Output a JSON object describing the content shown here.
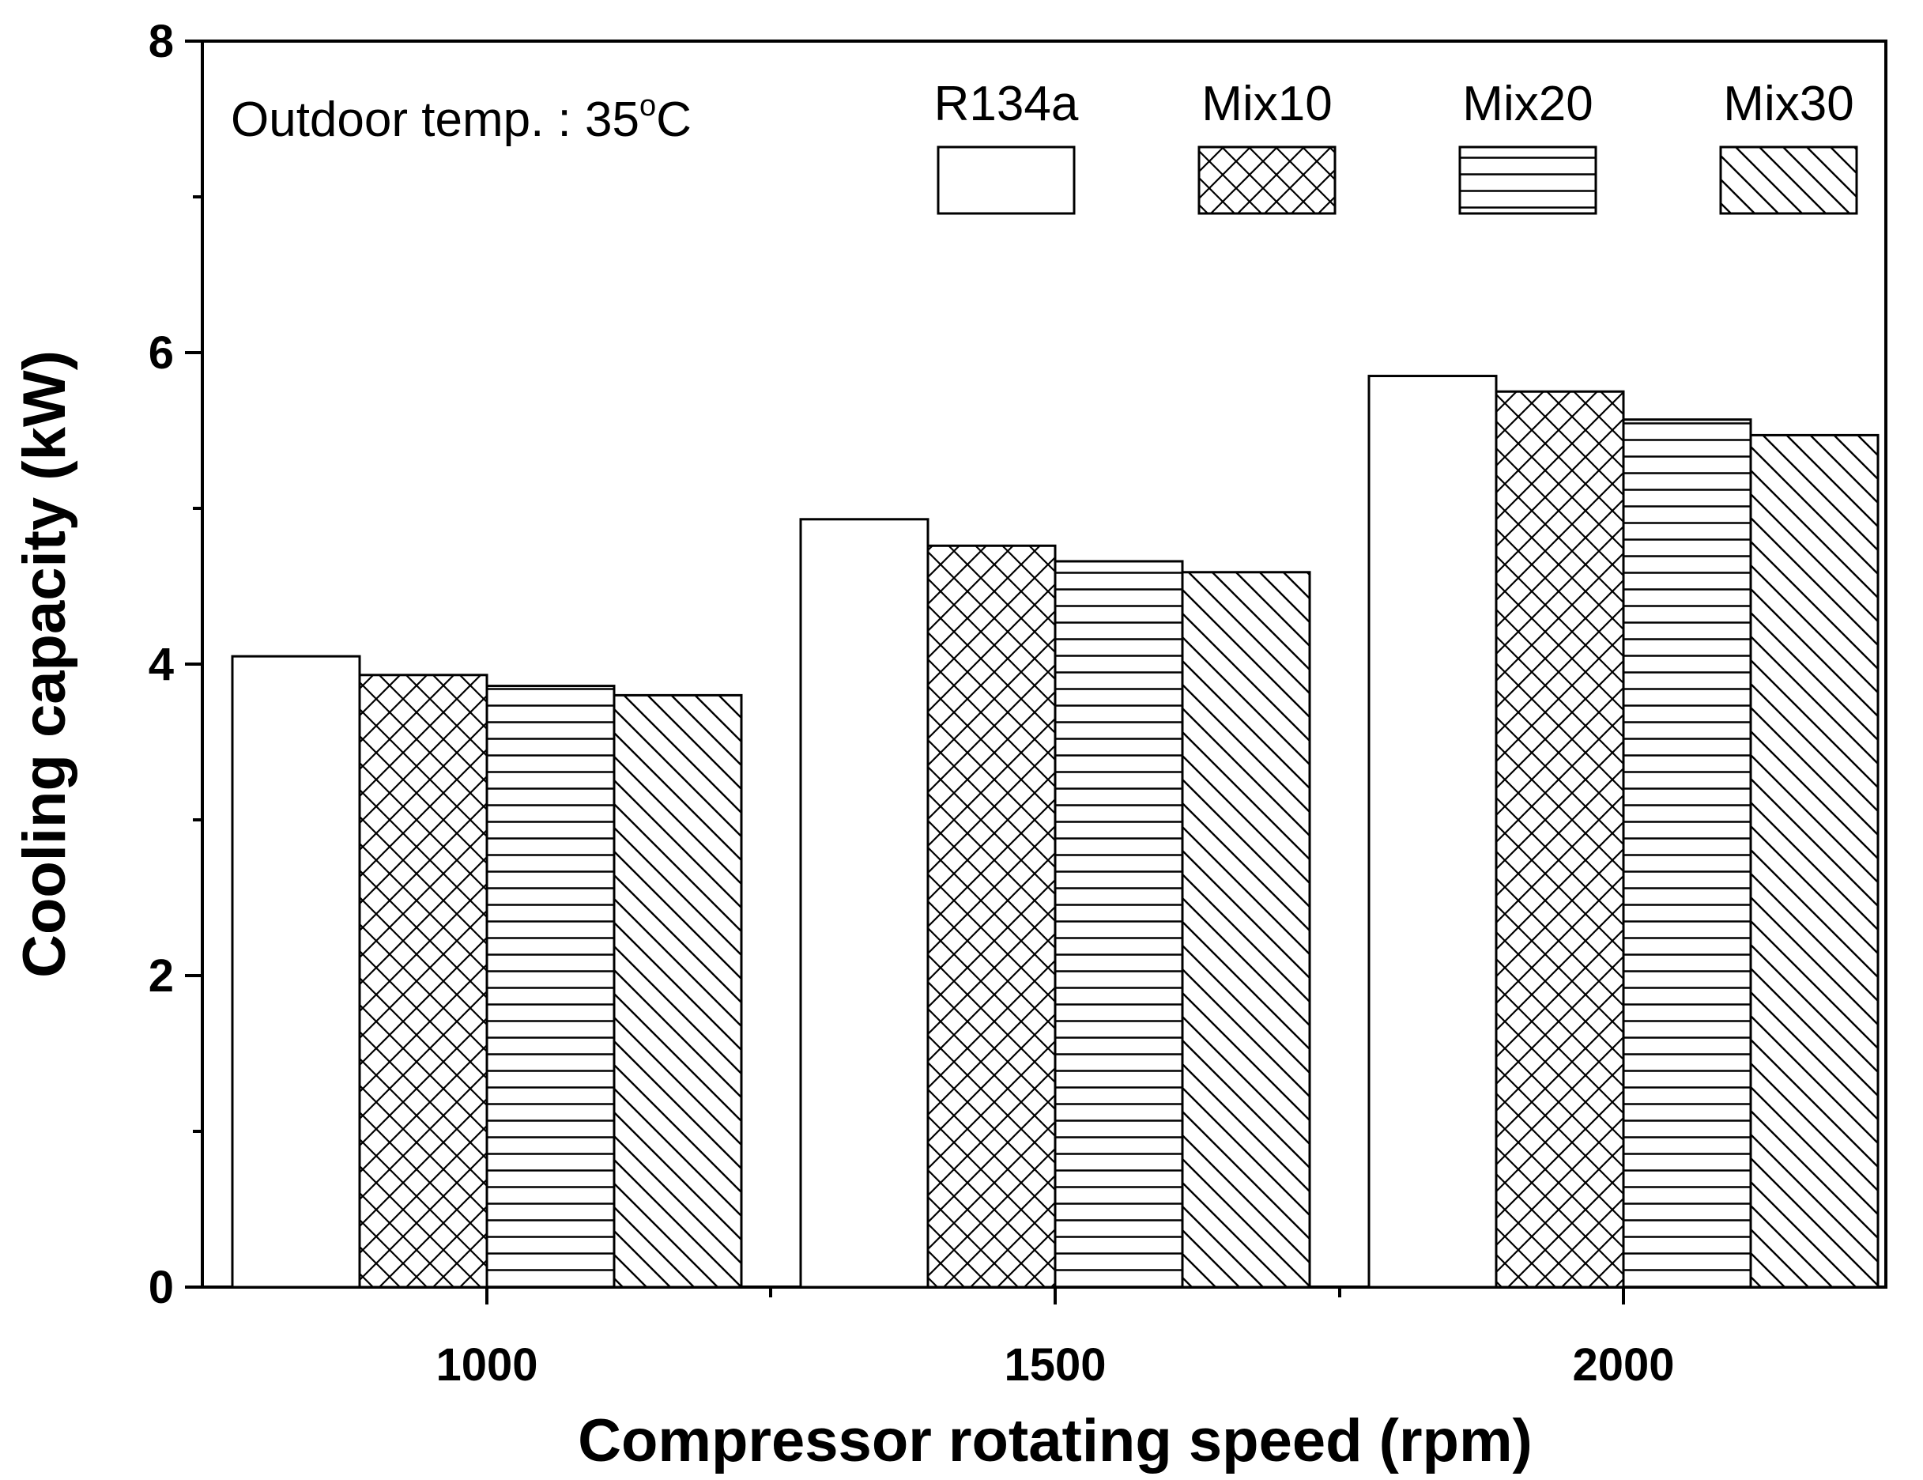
{
  "chart_data": {
    "type": "bar",
    "title": "",
    "xlabel": "Compressor rotating speed (rpm)",
    "ylabel": "Cooling capacity (kW)",
    "ylim": [
      0,
      8
    ],
    "yticks": [
      "0",
      "2",
      "4",
      "6",
      "8"
    ],
    "categories": [
      "1000",
      "1500",
      "2000"
    ],
    "series": [
      {
        "name": "R134a",
        "pattern": "none",
        "values": [
          4.05,
          4.93,
          5.85
        ]
      },
      {
        "name": "Mix10",
        "pattern": "crosshatch",
        "values": [
          3.93,
          4.76,
          5.75
        ]
      },
      {
        "name": "Mix20",
        "pattern": "horizontal",
        "values": [
          3.86,
          4.66,
          5.57
        ]
      },
      {
        "name": "Mix30",
        "pattern": "diagonal",
        "values": [
          3.8,
          4.59,
          5.47
        ]
      }
    ],
    "annotation": {
      "prefix": "Outdoor temp. : 35",
      "degree": "o",
      "unit": "C"
    },
    "legend_position": "top-right",
    "grid": false
  },
  "colors": {
    "axis": "#000000",
    "bar_fill": "#ffffff",
    "hatch": "#000000"
  }
}
